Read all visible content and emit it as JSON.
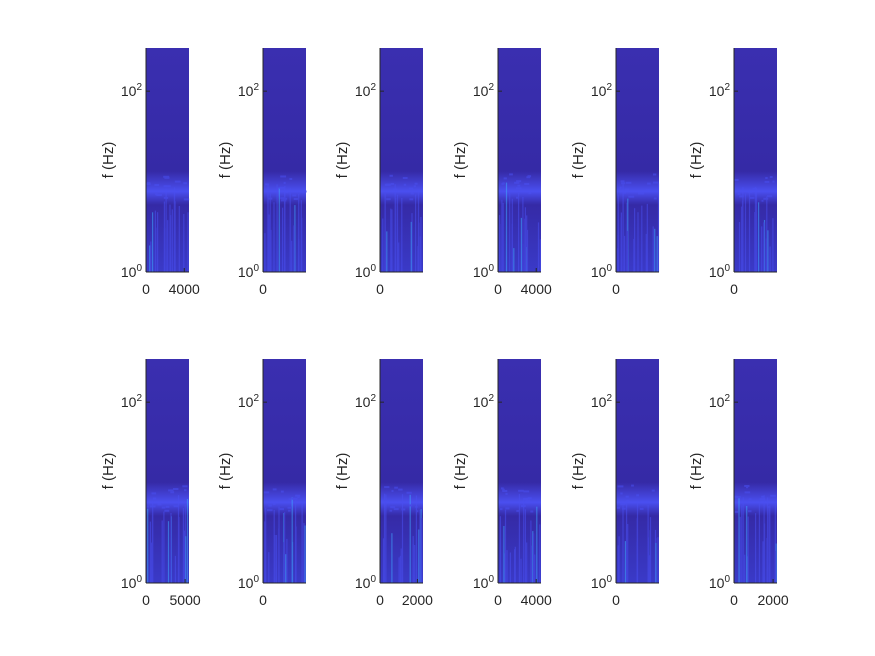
{
  "chart_data": {
    "type": "heatmap",
    "layout": {
      "rows": 2,
      "cols": 6
    },
    "colors": {
      "background": "#3a2fb0",
      "base": "#352aa6",
      "band": "#4a4ff0",
      "highlight": "#3fa6ff"
    },
    "ylabel": "f (Hz)",
    "y_scale": "log",
    "ylim": [
      1,
      300
    ],
    "y_ticks": [
      {
        "base": "10",
        "exp": "2",
        "value": 100
      },
      {
        "base": "10",
        "exp": "0",
        "value": 1
      }
    ],
    "panels": [
      {
        "xlim": [
          0,
          4500
        ],
        "x_ticks": [
          {
            "label": "0",
            "value": 0
          },
          {
            "label": "4000",
            "value": 4000
          }
        ]
      },
      {
        "xlim": [
          0,
          5000
        ],
        "x_ticks": [
          {
            "label": "0",
            "value": 0
          }
        ]
      },
      {
        "xlim": [
          0,
          5000
        ],
        "x_ticks": [
          {
            "label": "0",
            "value": 0
          }
        ]
      },
      {
        "xlim": [
          0,
          4500
        ],
        "x_ticks": [
          {
            "label": "0",
            "value": 0
          },
          {
            "label": "4000",
            "value": 4000
          }
        ]
      },
      {
        "xlim": [
          0,
          5000
        ],
        "x_ticks": [
          {
            "label": "0",
            "value": 0
          }
        ]
      },
      {
        "xlim": [
          0,
          5000
        ],
        "x_ticks": [
          {
            "label": "0",
            "value": 0
          }
        ]
      },
      {
        "xlim": [
          0,
          5500
        ],
        "x_ticks": [
          {
            "label": "0",
            "value": 0
          },
          {
            "label": "5000",
            "value": 5000
          }
        ]
      },
      {
        "xlim": [
          0,
          5000
        ],
        "x_ticks": [
          {
            "label": "0",
            "value": 0
          }
        ]
      },
      {
        "xlim": [
          0,
          2300
        ],
        "x_ticks": [
          {
            "label": "0",
            "value": 0
          },
          {
            "label": "2000",
            "value": 2000
          }
        ]
      },
      {
        "xlim": [
          0,
          4500
        ],
        "x_ticks": [
          {
            "label": "0",
            "value": 0
          },
          {
            "label": "4000",
            "value": 4000
          }
        ]
      },
      {
        "xlim": [
          0,
          5000
        ],
        "x_ticks": [
          {
            "label": "0",
            "value": 0
          }
        ]
      },
      {
        "xlim": [
          0,
          2200
        ],
        "x_ticks": [
          {
            "label": "0",
            "value": 0
          },
          {
            "label": "2000",
            "value": 2000
          }
        ]
      }
    ]
  }
}
